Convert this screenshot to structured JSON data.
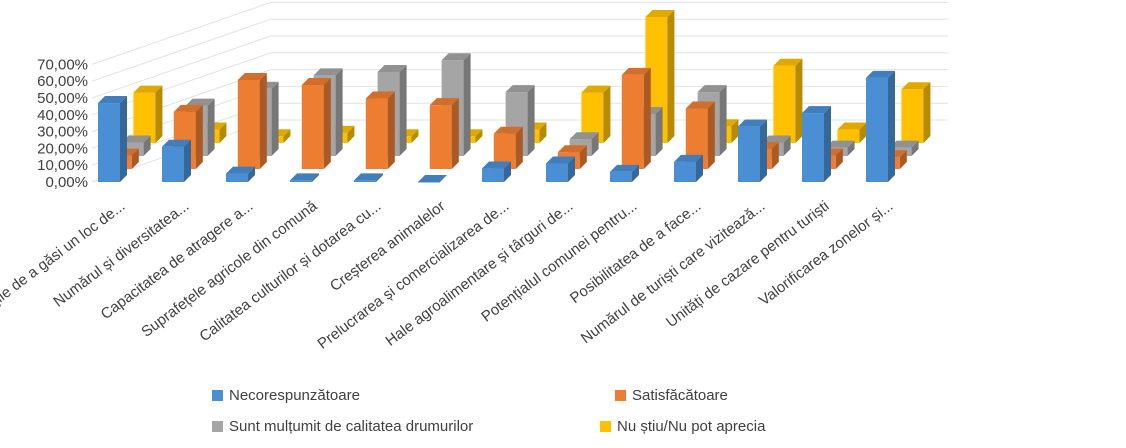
{
  "chart_data": {
    "type": "bar",
    "subtype": "3d-clustered-column",
    "categories": [
      "Oportunitățile de a găsi un loc de...",
      "Numărul și diversitatea...",
      "Capacitatea de atragere a...",
      "Suprafețele agricole din comună",
      "Calitatea culturilor și dotarea cu...",
      "Creșterea animalelor",
      "Prelucrarea și comercializarea de...",
      "Hale agroalimentare și târguri de...",
      "Potențialul comunei pentru...",
      "Posibilitatea de a face...",
      "Numărul de turiști care vizitează...",
      "Unități de cazare pentru turiști",
      "Valorificarea zonelor și..."
    ],
    "series": [
      {
        "name": "Necorespunzătoare",
        "color": "#4a8fd4",
        "values": [
          47,
          21,
          5,
          1,
          1,
          0,
          8,
          11,
          6,
          12,
          33,
          41,
          62
        ]
      },
      {
        "name": "Satisfăcătoare",
        "color": "#ed7d31",
        "values": [
          8,
          34,
          53,
          50,
          42,
          38,
          21,
          10,
          56,
          36,
          12,
          8,
          7
        ]
      },
      {
        "name": "Sunt mulțumit de calitatea drumurilor",
        "color": "#a5a5a5",
        "values": [
          8,
          30,
          40,
          48,
          50,
          57,
          38,
          10,
          25,
          38,
          8,
          5,
          5
        ]
      },
      {
        "name": "Nu știu/Nu pot aprecia",
        "color": "#ffc000",
        "values": [
          30,
          8,
          4,
          6,
          4,
          4,
          8,
          30,
          75,
          10,
          46,
          8,
          32
        ]
      }
    ],
    "y_tick_labels": [
      "0,00%",
      "10,00%",
      "20,00%",
      "30,00%",
      "40,00%",
      "50,00%",
      "60,00%",
      "70,00%"
    ],
    "ylim": [
      0,
      70
    ],
    "y_unit": "%",
    "legend_position": "bottom",
    "grid": true,
    "title": "",
    "xlabel": "",
    "ylabel": ""
  }
}
